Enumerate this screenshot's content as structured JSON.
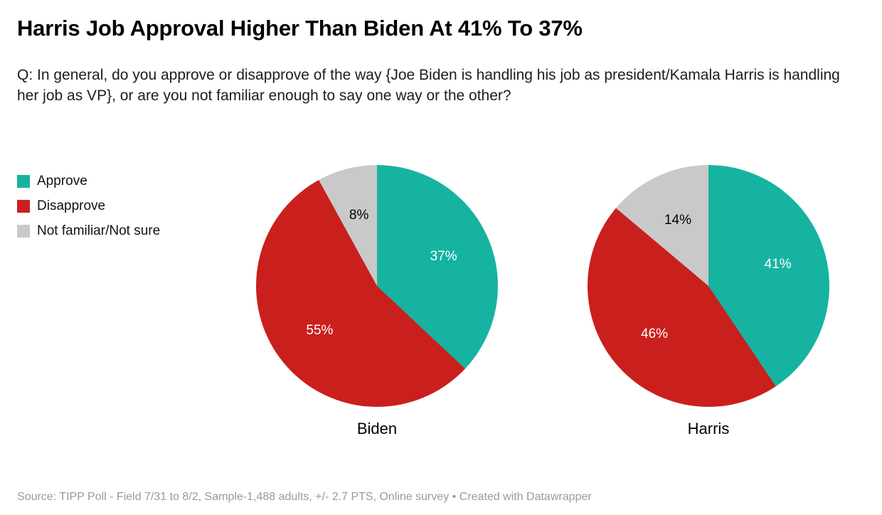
{
  "header": {
    "title": "Harris Job Approval Higher Than Biden At 41% To 37%",
    "subtitle": "Q: In general, do you approve or disapprove of the way {Joe Biden is handling his job as president/Kamala Harris is handling her job as VP}, or are you not familiar enough to say one way or the other?"
  },
  "legend": {
    "items": [
      {
        "label": "Approve",
        "color": "#16b3a0"
      },
      {
        "label": "Disapprove",
        "color": "#c9201d"
      },
      {
        "label": "Not familiar/Not sure",
        "color": "#c9c9c9"
      }
    ]
  },
  "chart_data": {
    "type": "pie",
    "categories": [
      "Approve",
      "Disapprove",
      "Not familiar/Not sure"
    ],
    "colors": [
      "#16b3a0",
      "#c9201d",
      "#c9c9c9"
    ],
    "label_colors": [
      "#ffffff",
      "#ffffff",
      "#000000"
    ],
    "start_angle_deg": 0,
    "direction": "clockwise",
    "pies": [
      {
        "name": "Biden",
        "values": [
          37,
          55,
          8
        ],
        "labels": [
          "37%",
          "55%",
          "8%"
        ]
      },
      {
        "name": "Harris",
        "values": [
          41,
          46,
          14
        ],
        "labels": [
          "41%",
          "46%",
          "14%"
        ]
      }
    ]
  },
  "footer": {
    "source": "Source: TIPP Poll - Field 7/31 to 8/2, Sample-1,488 adults, +/- 2.7 PTS, Online survey • Created with Datawrapper"
  }
}
